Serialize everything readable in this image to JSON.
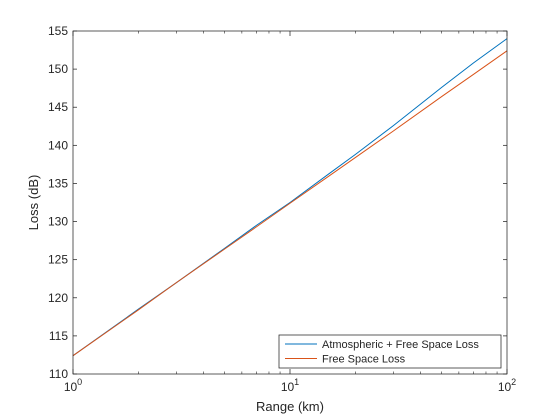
{
  "chart_data": {
    "type": "line",
    "title": "",
    "xlabel": "Range (km)",
    "ylabel": "Loss (dB)",
    "xscale": "log",
    "xlim": [
      1,
      100
    ],
    "ylim": [
      110,
      155
    ],
    "grid": false,
    "legend_position": "bottom-right",
    "xticks": [
      {
        "value": 1,
        "base": "10",
        "exp": "0"
      },
      {
        "value": 10,
        "base": "10",
        "exp": "1"
      },
      {
        "value": 100,
        "base": "10",
        "exp": "2"
      }
    ],
    "yticks": [
      {
        "value": 110,
        "label": "110"
      },
      {
        "value": 115,
        "label": "115"
      },
      {
        "value": 120,
        "label": "120"
      },
      {
        "value": 125,
        "label": "125"
      },
      {
        "value": 130,
        "label": "130"
      },
      {
        "value": 135,
        "label": "135"
      },
      {
        "value": 140,
        "label": "140"
      },
      {
        "value": 145,
        "label": "145"
      },
      {
        "value": 150,
        "label": "150"
      },
      {
        "value": 155,
        "label": "155"
      }
    ],
    "series": [
      {
        "name": "Atmospheric + Free Space Loss",
        "color": "#0072bd",
        "x": [
          1,
          2,
          3,
          5,
          7,
          10,
          15,
          20,
          30,
          50,
          70,
          100
        ],
        "y": [
          112.4,
          118.5,
          122.0,
          126.5,
          129.5,
          132.5,
          136.2,
          138.8,
          142.6,
          147.6,
          150.8,
          154.0
        ]
      },
      {
        "name": "Free Space Loss",
        "color": "#d95319",
        "x": [
          1,
          2,
          3,
          5,
          7,
          10,
          15,
          20,
          30,
          50,
          70,
          100
        ],
        "y": [
          112.4,
          118.4,
          122.0,
          126.4,
          129.3,
          132.4,
          135.9,
          138.4,
          141.9,
          146.4,
          149.3,
          152.4
        ]
      }
    ]
  }
}
